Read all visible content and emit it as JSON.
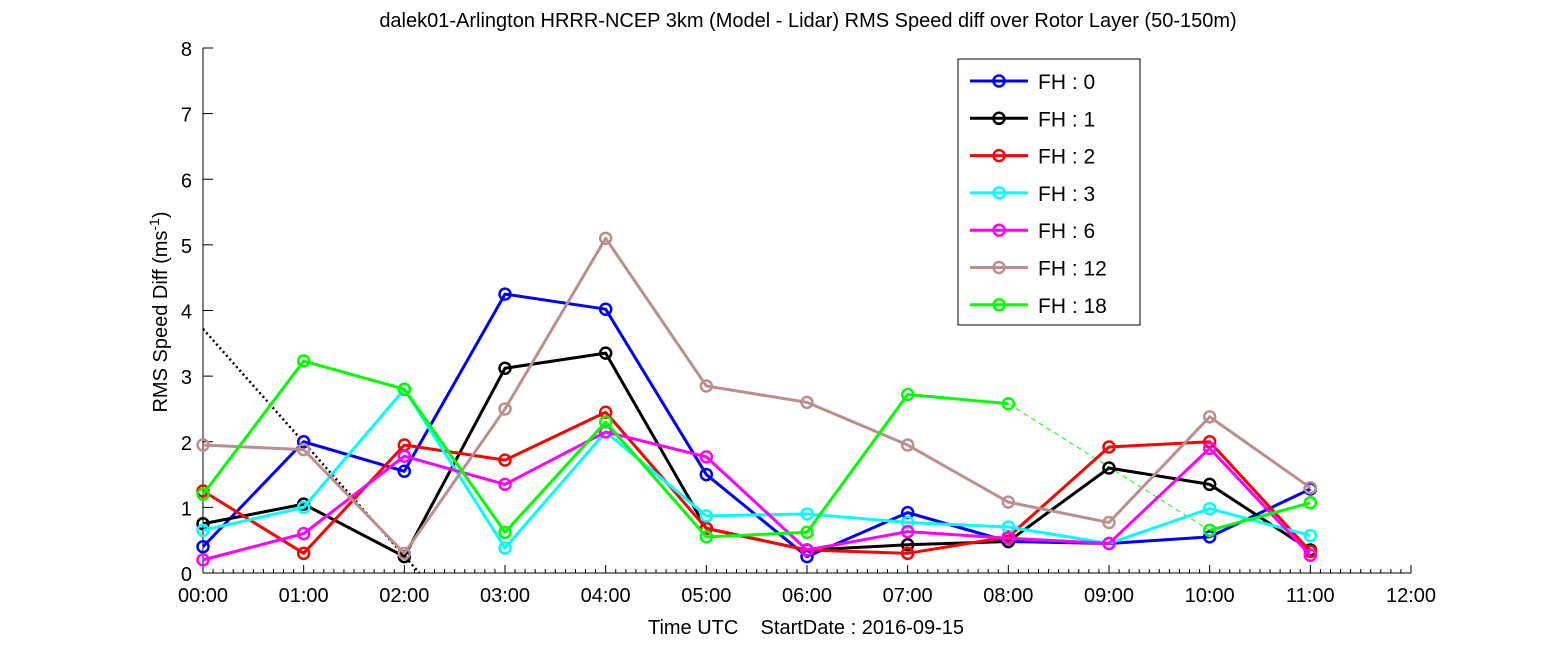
{
  "chart_data": {
    "type": "line",
    "title": "dalek01-Arlington HRRR-NCEP 3km (Model - Lidar) RMS Speed diff over Rotor Layer (50-150m)",
    "xlabel": "Time UTC    StartDate : 2016-09-15",
    "ylabel": "RMS Speed Diff (ms",
    "ylabel_sup": "-1",
    "ylabel_close": ")",
    "xlim": [
      0,
      12
    ],
    "ylim": [
      0,
      8
    ],
    "x_tick_labels": [
      "00:00",
      "01:00",
      "02:00",
      "03:00",
      "04:00",
      "05:00",
      "06:00",
      "07:00",
      "08:00",
      "09:00",
      "10:00",
      "11:00",
      "12:00"
    ],
    "y_tick_labels": [
      "0",
      "1",
      "2",
      "3",
      "4",
      "5",
      "6",
      "7",
      "8"
    ],
    "legend_position": "top-right",
    "grid": false,
    "series": [
      {
        "name": "FH : 0",
        "color": "#0000ff",
        "x": [
          0,
          1,
          2,
          3,
          4,
          5,
          6,
          7,
          8,
          9,
          10,
          11
        ],
        "y": [
          0.4,
          2.0,
          1.55,
          4.25,
          4.02,
          1.5,
          0.25,
          0.92,
          0.48,
          0.45,
          0.55,
          1.28
        ]
      },
      {
        "name": "FH : 1",
        "color": "#000000",
        "x": [
          0,
          1,
          2,
          3,
          4,
          5,
          6,
          7,
          8,
          9,
          10,
          11
        ],
        "y": [
          0.75,
          1.05,
          0.25,
          3.12,
          3.35,
          0.68,
          0.35,
          0.43,
          0.48,
          1.6,
          1.35,
          0.35
        ]
      },
      {
        "name": "FH : 2",
        "color": "#ff0000",
        "x": [
          0,
          1,
          2,
          3,
          4,
          5,
          6,
          7,
          8,
          9,
          10,
          11
        ],
        "y": [
          1.25,
          0.3,
          1.95,
          1.72,
          2.45,
          0.68,
          0.35,
          0.3,
          0.55,
          1.92,
          2.0,
          0.33
        ]
      },
      {
        "name": "FH : 3",
        "color": "#00ffff",
        "x": [
          0,
          1,
          2,
          3,
          4,
          5,
          6,
          7,
          8,
          9,
          10,
          11
        ],
        "y": [
          0.65,
          1.0,
          2.8,
          0.38,
          2.15,
          0.87,
          0.9,
          0.77,
          0.7,
          0.45,
          0.98,
          0.57
        ]
      },
      {
        "name": "FH : 6",
        "color": "#ff00ff",
        "x": [
          0,
          1,
          2,
          3,
          4,
          5,
          6,
          7,
          8,
          9,
          10,
          11
        ],
        "y": [
          0.2,
          0.6,
          1.78,
          1.35,
          2.15,
          1.77,
          0.35,
          0.63,
          0.53,
          0.45,
          1.9,
          0.27
        ]
      },
      {
        "name": "FH : 12",
        "color": "#bc8f8f",
        "x": [
          0,
          1,
          2,
          3,
          4,
          5,
          6,
          7,
          8,
          9,
          10,
          11
        ],
        "y": [
          1.95,
          1.88,
          0.3,
          2.5,
          5.1,
          2.85,
          2.6,
          1.95,
          1.08,
          0.77,
          2.38,
          1.3
        ]
      },
      {
        "name": "FH : 18",
        "color": "#00ff00",
        "x": [
          0,
          1,
          2,
          3,
          4,
          5,
          6,
          7,
          8,
          10,
          11
        ],
        "y": [
          1.2,
          3.23,
          2.8,
          0.62,
          2.3,
          0.55,
          0.62,
          2.72,
          2.58,
          0.65,
          1.07
        ]
      }
    ],
    "gap_connector": {
      "color": "#00ff00",
      "style": "dashed",
      "x": [
        8,
        10
      ],
      "y": [
        2.58,
        0.65
      ]
    },
    "reference_line": {
      "color": "#000000",
      "style": "dotted",
      "x": [
        0,
        2.15
      ],
      "y": [
        3.72,
        0
      ]
    }
  }
}
